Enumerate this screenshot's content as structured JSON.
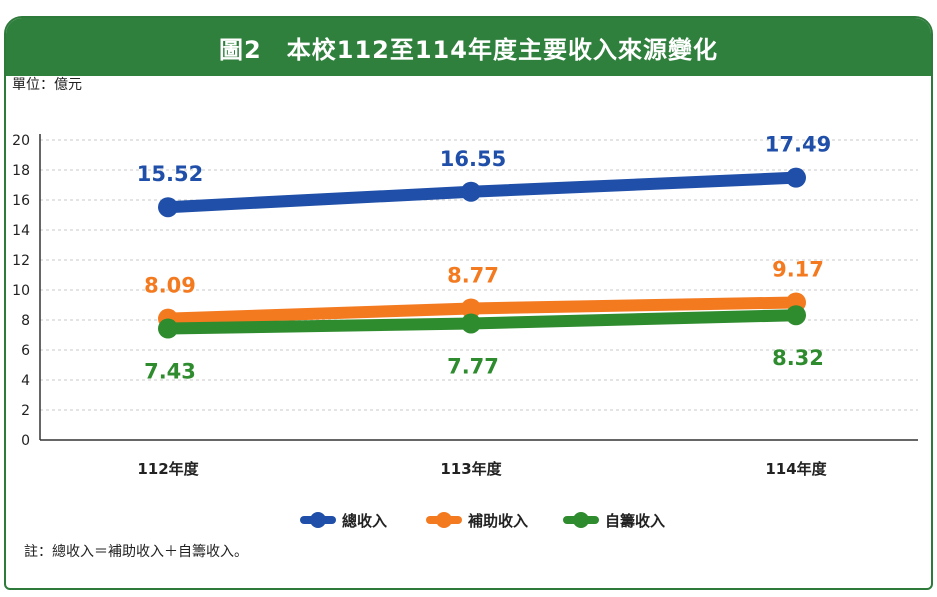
{
  "header": {
    "title": "圖2　本校112至114年度主要收入來源變化"
  },
  "unit_label": "單位：億元",
  "note": "註：總收入＝補助收入＋自籌收入。",
  "chart_data": {
    "type": "line",
    "title": "圖2　本校112至114年度主要收入來源變化",
    "xlabel": "",
    "ylabel": "單位：億元",
    "categories": [
      "112年度",
      "113年度",
      "114年度"
    ],
    "ylim": [
      0,
      20
    ],
    "yticks": [
      0,
      2,
      4,
      6,
      8,
      10,
      12,
      14,
      16,
      18,
      20
    ],
    "grid": true,
    "legend_position": "bottom",
    "series": [
      {
        "name": "總收入",
        "values": [
          15.52,
          16.55,
          17.49
        ],
        "labels": [
          "15.52",
          "16.55",
          "17.49"
        ],
        "color": "#1f4fa8",
        "label_position": "above"
      },
      {
        "name": "補助收入",
        "values": [
          8.09,
          8.77,
          9.17
        ],
        "labels": [
          "8.09",
          "8.77",
          "9.17"
        ],
        "color": "#f47a20",
        "label_position": "above"
      },
      {
        "name": "自籌收入",
        "values": [
          7.43,
          7.77,
          8.32
        ],
        "labels": [
          "7.43",
          "7.77",
          "8.32"
        ],
        "color": "#2e8b2e",
        "label_position": "below"
      }
    ]
  }
}
